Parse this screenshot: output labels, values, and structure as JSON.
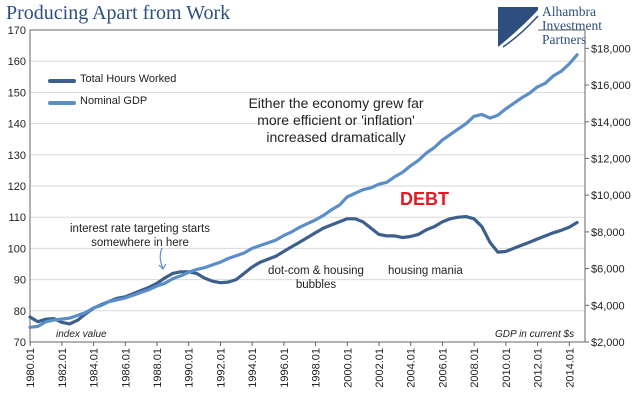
{
  "title": "Producing Apart from Work",
  "logo": {
    "line1": "Alhambra",
    "line2": "Investment",
    "line3": "Partners"
  },
  "annotations": {
    "main": [
      "Either the economy grew far",
      "more efficient or 'inflation'",
      "increased dramatically"
    ],
    "rate_targeting": [
      "interest rate targeting starts",
      "somewhere in here"
    ],
    "dotcom": [
      "dot-com & housing",
      "bubbles"
    ],
    "housing": "housing mania",
    "debt": "DEBT",
    "index_value": "index value",
    "gdp_units": "GDP in current $s"
  },
  "chart_data": {
    "type": "line",
    "title": "Producing Apart from Work",
    "legend_position": "top-left",
    "grid": true,
    "colors": {
      "hours": "#3d5f8c",
      "gdp": "#5b8ec8"
    },
    "x_ticks": [
      "1980.01",
      "1982.01",
      "1984.01",
      "1986.01",
      "1988.01",
      "1990.01",
      "1992.01",
      "1994.01",
      "1996.01",
      "1998.01",
      "2000.01",
      "2002.01",
      "2004.01",
      "2006.01",
      "2008.01",
      "2010.01",
      "2012.01",
      "2014.01"
    ],
    "left_axis": {
      "label": "index value",
      "min": 70,
      "max": 170,
      "ticks": [
        70,
        80,
        90,
        100,
        110,
        120,
        130,
        140,
        150,
        160,
        170
      ]
    },
    "right_axis": {
      "label": "GDP in current $s",
      "min": 2000,
      "max": 19000,
      "ticks": [
        "$2,000",
        "$4,000",
        "$6,000",
        "$8,000",
        "$10,000",
        "$12,000",
        "$14,000",
        "$16,000",
        "$18,000"
      ],
      "tick_values": [
        2000,
        4000,
        6000,
        8000,
        10000,
        12000,
        14000,
        16000,
        18000
      ]
    },
    "series": [
      {
        "name": "Total Hours Worked",
        "axis": "left",
        "x": [
          1980,
          1980.5,
          1981,
          1981.5,
          1982,
          1982.5,
          1983,
          1983.5,
          1984,
          1984.5,
          1985,
          1985.5,
          1986,
          1986.5,
          1987,
          1987.5,
          1988,
          1988.5,
          1989,
          1989.5,
          1990,
          1990.5,
          1991,
          1991.5,
          1992,
          1992.5,
          1993,
          1993.5,
          1994,
          1994.5,
          1995,
          1995.5,
          1996,
          1996.5,
          1997,
          1997.5,
          1998,
          1998.5,
          1999,
          1999.5,
          2000,
          2000.5,
          2001,
          2001.5,
          2002,
          2002.5,
          2003,
          2003.5,
          2004,
          2004.5,
          2005,
          2005.5,
          2006,
          2006.5,
          2007,
          2007.5,
          2008,
          2008.5,
          2009,
          2009.5,
          2010,
          2010.5,
          2011,
          2011.5,
          2012,
          2012.5,
          2013,
          2013.5,
          2014,
          2014.5
        ],
        "y": [
          78,
          76.5,
          77.3,
          77.5,
          76.3,
          75.8,
          77,
          79,
          80.8,
          82,
          83,
          84,
          84.5,
          85.5,
          86.5,
          87.5,
          88.8,
          90.5,
          92,
          92.5,
          92.5,
          92,
          90.5,
          89.5,
          89,
          89.2,
          90,
          92,
          94,
          95.5,
          96.5,
          97.5,
          99,
          100.5,
          102,
          103.5,
          105,
          106.5,
          107.5,
          108.5,
          109.5,
          109.5,
          108.5,
          106.5,
          104.5,
          104,
          104,
          103.5,
          103.8,
          104.5,
          106,
          107,
          108.5,
          109.5,
          110,
          110.2,
          109.5,
          107,
          102,
          98.8,
          99,
          100,
          101,
          102,
          103,
          104,
          105,
          105.8,
          106.8,
          108.3
        ]
      },
      {
        "name": "Nominal GDP",
        "axis": "right",
        "x": [
          1980,
          1980.5,
          1981,
          1981.5,
          1982,
          1982.5,
          1983,
          1983.5,
          1984,
          1984.5,
          1985,
          1985.5,
          1986,
          1986.5,
          1987,
          1987.5,
          1988,
          1988.5,
          1989,
          1989.5,
          1990,
          1990.5,
          1991,
          1991.5,
          1992,
          1992.5,
          1993,
          1993.5,
          1994,
          1994.5,
          1995,
          1995.5,
          1996,
          1996.5,
          1997,
          1997.5,
          1998,
          1998.5,
          1999,
          1999.5,
          2000,
          2000.5,
          2001,
          2001.5,
          2002,
          2002.5,
          2003,
          2003.5,
          2004,
          2004.5,
          2005,
          2005.5,
          2006,
          2006.5,
          2007,
          2007.5,
          2008,
          2008.5,
          2009,
          2009.5,
          2010,
          2010.5,
          2011,
          2011.5,
          2012,
          2012.5,
          2013,
          2013.5,
          2014,
          2014.5
        ],
        "y": [
          2800,
          2850,
          3100,
          3200,
          3250,
          3300,
          3450,
          3600,
          3850,
          4000,
          4200,
          4300,
          4400,
          4550,
          4700,
          4850,
          5050,
          5200,
          5450,
          5600,
          5800,
          5950,
          6050,
          6200,
          6350,
          6550,
          6700,
          6850,
          7100,
          7250,
          7400,
          7550,
          7800,
          8000,
          8250,
          8450,
          8650,
          8900,
          9200,
          9450,
          9900,
          10100,
          10300,
          10400,
          10600,
          10700,
          11000,
          11250,
          11600,
          11900,
          12300,
          12600,
          13000,
          13300,
          13600,
          13900,
          14300,
          14400,
          14200,
          14350,
          14700,
          15000,
          15300,
          15550,
          15900,
          16100,
          16500,
          16750,
          17150,
          17650
        ]
      }
    ]
  }
}
